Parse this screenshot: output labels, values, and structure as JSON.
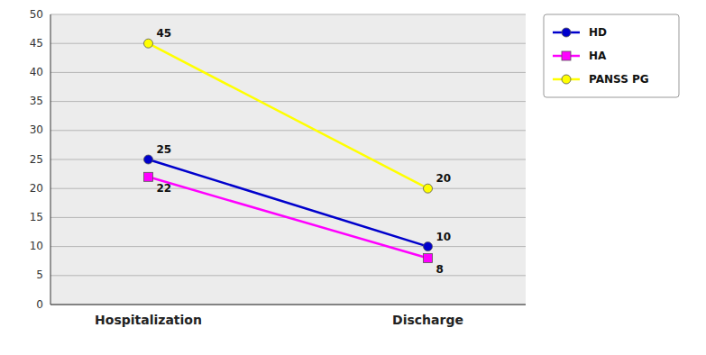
{
  "chart_data": {
    "type": "line",
    "categories": [
      "Hospitalization",
      "Discharge"
    ],
    "series": [
      {
        "name": "HD",
        "color": "#0000CC",
        "marker": "circle",
        "values": [
          25,
          10
        ]
      },
      {
        "name": "HA",
        "color": "#FF00FF",
        "marker": "square",
        "values": [
          22,
          8
        ]
      },
      {
        "name": "PANSS PG",
        "color": "#FFFF00",
        "marker": "circle",
        "values": [
          45,
          20
        ]
      }
    ],
    "ylim": [
      0,
      50
    ],
    "yticks": [
      0,
      5,
      10,
      15,
      20,
      25,
      30,
      35,
      40,
      45,
      50
    ],
    "grid": true,
    "legend": "right",
    "data_labels": true
  }
}
